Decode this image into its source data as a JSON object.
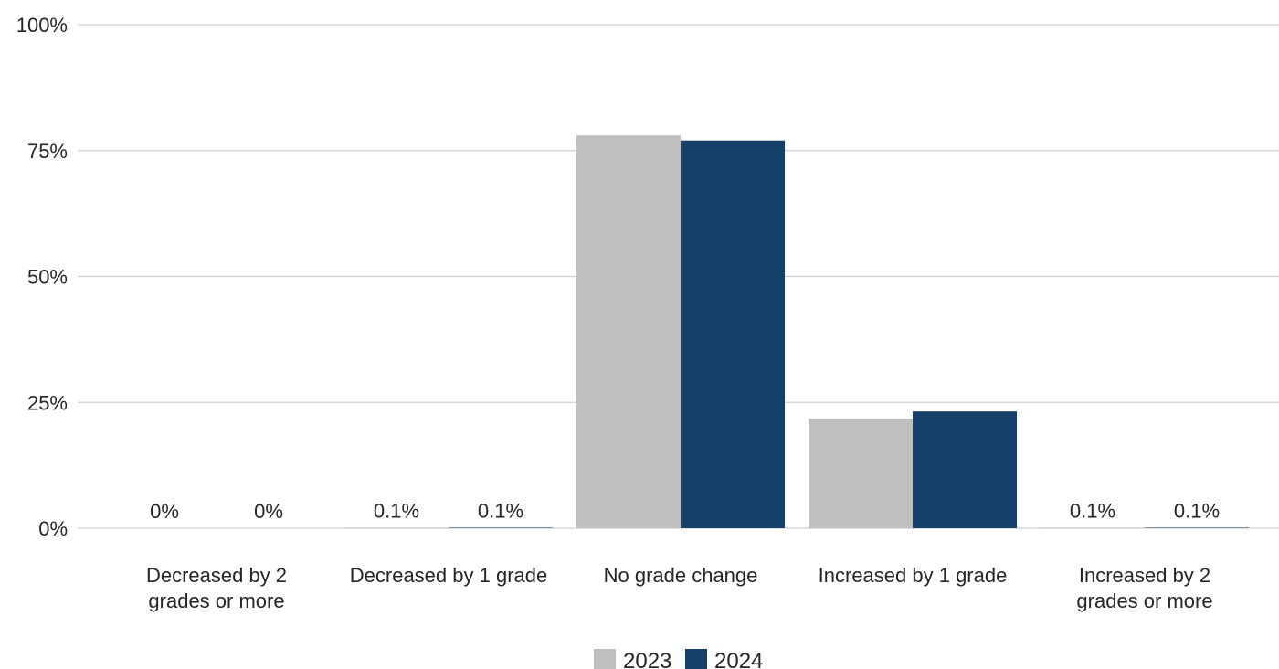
{
  "chart_data": {
    "type": "bar",
    "categories": [
      [
        "Decreased by 2",
        "grades or more"
      ],
      [
        "Decreased by 1 grade"
      ],
      [
        "No grade change"
      ],
      [
        "Increased by 1 grade"
      ],
      [
        "Increased by 2",
        "grades or more"
      ]
    ],
    "series": [
      {
        "name": "2023",
        "color": "#bfbfbf",
        "values": [
          0,
          0.1,
          78,
          21.8,
          0.1
        ],
        "labels": [
          "0%",
          "0.1%",
          "",
          "",
          "0.1%"
        ]
      },
      {
        "name": "2024",
        "color": "#14406a",
        "values": [
          0,
          0.1,
          77,
          23.2,
          0.1
        ],
        "labels": [
          "0%",
          "0.1%",
          "",
          "",
          "0.1%"
        ]
      }
    ],
    "ylim": [
      0,
      100
    ],
    "yticks": [
      0,
      25,
      50,
      75,
      100
    ],
    "ytick_labels": [
      "0%",
      "25%",
      "50%",
      "75%",
      "100%"
    ],
    "grid": true,
    "legend_position": "bottom"
  }
}
